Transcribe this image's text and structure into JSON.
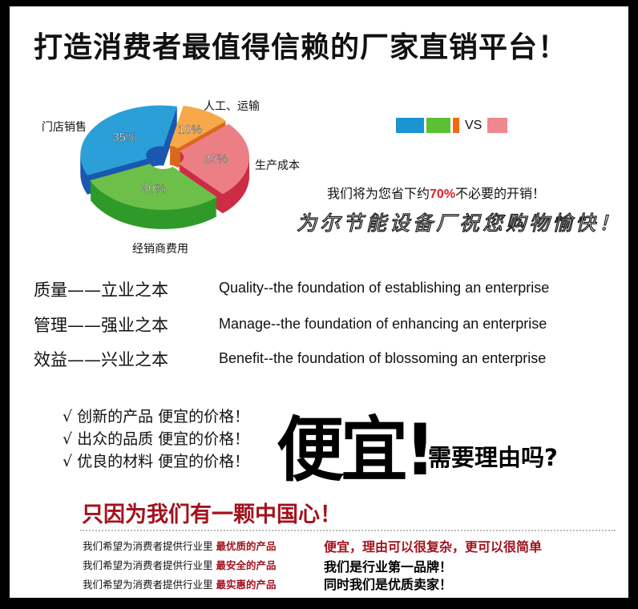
{
  "title": "打造消费者最值得信赖的厂家直销平台！",
  "chart_data": {
    "type": "pie",
    "slices": [
      {
        "label": "人工、运输",
        "value": 10,
        "value_label": "10%",
        "color": "#f6a84a"
      },
      {
        "label": "生产成本",
        "value": 25,
        "value_label": "25%",
        "color": "#ec7f86"
      },
      {
        "label": "经销商费用",
        "value": 30,
        "value_label": "30%",
        "color": "#6cc04a"
      },
      {
        "label": "门店销售",
        "value": 35,
        "value_label": "35%",
        "color": "#2a9fd8"
      }
    ]
  },
  "legend": {
    "left_colors": [
      "#1a95d2",
      "#5cc035",
      "#f26a12"
    ],
    "vs": "VS",
    "right_color": "#f08790"
  },
  "save": {
    "before": "我们将为您省下约",
    "highlight": "70%",
    "after": "不必要的开销！"
  },
  "wish": "为尔节能设备厂祝您购物愉快！",
  "mottos": [
    {
      "cn": "质量——立业之本",
      "en": "Quality--the foundation of establishing an enterprise"
    },
    {
      "cn": "管理——强业之本",
      "en": "Manage--the foundation of enhancing an enterprise"
    },
    {
      "cn": "效益——兴业之本",
      "en": "Benefit--the foundation of blossoming an enterprise"
    }
  ],
  "checks": [
    "√ 创新的产品  便宜的价格！",
    "√ 出众的品质  便宜的价格！",
    "√ 优良的材料  便宜的价格！"
  ],
  "cheap": "便宜!",
  "reason": "需要理由吗?",
  "heart": "只因为我们有一颗中国心！",
  "promises": [
    {
      "text": "我们希望为消费者提供行业里 ",
      "highlight": "最优质的产品"
    },
    {
      "text": "我们希望为消费者提供行业里 ",
      "highlight": "最安全的产品"
    },
    {
      "text": "我们希望为消费者提供行业里 ",
      "highlight": "最实惠的产品"
    }
  ],
  "claims": [
    "便宜，理由可以很复杂，更可以很简单",
    "我们是行业第一品牌！",
    "同时我们是优质卖家！"
  ]
}
